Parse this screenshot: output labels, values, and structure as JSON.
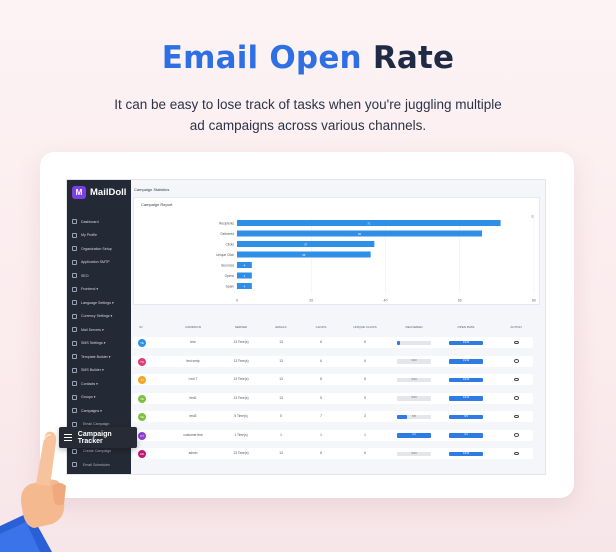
{
  "hero": {
    "title_part1": "Email Open",
    "title_part2": "Rate",
    "subtitle_line1": "It can be easy to lose track of tasks when you're juggling multiple",
    "subtitle_line2": "ad campaigns across various channels."
  },
  "app": {
    "logo": "MailDoll",
    "page_title": "Campaign Statistics",
    "report_title": "Campaign Report"
  },
  "sidebar": {
    "items": [
      {
        "label": "Dashboard",
        "icon": "home-icon"
      },
      {
        "label": "My Profile",
        "icon": "user-icon"
      },
      {
        "label": "Organization Setup",
        "icon": "wrench-icon"
      },
      {
        "label": "Application SMTP",
        "icon": "mail-icon"
      },
      {
        "label": "SEO",
        "icon": "chart-icon"
      },
      {
        "label": "Frontend ▾",
        "icon": "globe-icon"
      },
      {
        "label": "Language Settings ▾",
        "icon": "language-icon"
      },
      {
        "label": "Currency Settings ▾",
        "icon": "currency-icon"
      },
      {
        "label": "Mail Servers ▾",
        "icon": "server-icon"
      },
      {
        "label": "SMS Settings ▾",
        "icon": "sms-icon"
      },
      {
        "label": "Template Builder ▾",
        "icon": "template-icon"
      },
      {
        "label": "SMS Builder ▾",
        "icon": "builder-icon"
      },
      {
        "label": "Contacts ▾",
        "icon": "contacts-icon"
      },
      {
        "label": "Groups ▾",
        "icon": "groups-icon"
      },
      {
        "label": "Campaigns ▾",
        "icon": "campaign-icon"
      },
      {
        "label": "Email Campaign",
        "icon": "list-icon"
      },
      {
        "label": "Campaign Tracker",
        "icon": "list-icon"
      },
      {
        "label": "Create Campaign",
        "icon": "list-icon"
      },
      {
        "label": "Email Schedules",
        "icon": "list-icon"
      }
    ]
  },
  "tooltip": {
    "label": "Campaign Tracker"
  },
  "chart_data": {
    "type": "bar",
    "orientation": "horizontal",
    "title": "Campaign Report",
    "categories": [
      "Recipients",
      "Delivered",
      "Clicks",
      "Unique Click",
      "Bounced",
      "Opens",
      "Spam"
    ],
    "values": [
      71,
      66,
      37,
      36,
      4,
      4,
      4
    ],
    "data_labels": [
      "71",
      "66",
      "37",
      "36",
      "4",
      "4",
      "4"
    ],
    "xlim": [
      0,
      80
    ],
    "xticks": [
      "0",
      "20",
      "40",
      "60",
      "80"
    ],
    "grid": true,
    "color": "#2e8fe8"
  },
  "table": {
    "headers": [
      "ID",
      "CAMPAIGN",
      "SERVED",
      "EMAILS",
      "CLICKS",
      "UNIQUE CLICKS",
      "DELIVERED",
      "OPEN RATE",
      "ACTION"
    ],
    "rows": [
      {
        "id": "TE",
        "color": "#2e8fe8",
        "campaign": "test",
        "served": "13 Time(s)",
        "emails": "13",
        "clicks": "6",
        "unique": "6",
        "delivered": 0.1,
        "delivered_label": "",
        "open": 1.0,
        "open_label": "13/13"
      },
      {
        "id": "TS",
        "color": "#e5397a",
        "campaign": "test smtp",
        "served": "13 Time(s)",
        "emails": "13",
        "clicks": "6",
        "unique": "6",
        "delivered": 0.0,
        "delivered_label": "0/13",
        "open": 1.0,
        "open_label": "13/13"
      },
      {
        "id": "T1",
        "color": "#f5a623",
        "campaign": "t est 7",
        "served": "13 Time(s)",
        "emails": "13",
        "clicks": "8",
        "unique": "8",
        "delivered": 0.0,
        "delivered_label": "0/13",
        "open": 1.0,
        "open_label": "13/13"
      },
      {
        "id": "TE",
        "color": "#7ac142",
        "campaign": "test2",
        "served": "13 Time(s)",
        "emails": "13",
        "clicks": "5",
        "unique": "5",
        "delivered": 0.0,
        "delivered_label": "0/13",
        "open": 1.0,
        "open_label": "13/13"
      },
      {
        "id": "TE",
        "color": "#7ac142",
        "campaign": "test3",
        "served": "5 Time(s)",
        "emails": "5",
        "clicks": "7",
        "unique": "3",
        "delivered": 0.3,
        "delivered_label": "5/5",
        "open": 1.0,
        "open_label": "5/5"
      },
      {
        "id": "CT",
        "color": "#8e3fd0",
        "campaign": "customer test",
        "served": "1 Time(s)",
        "emails": "1",
        "clicks": "1",
        "unique": "1",
        "delivered": 1.0,
        "delivered_label": "1/1",
        "open": 1.0,
        "open_label": "1/1"
      },
      {
        "id": "AD",
        "color": "#c0157a",
        "campaign": "admin",
        "served": "13 Time(s)",
        "emails": "13",
        "clicks": "8",
        "unique": "6",
        "delivered": 0.0,
        "delivered_label": "0/13",
        "open": 1.0,
        "open_label": "13/13"
      }
    ]
  }
}
